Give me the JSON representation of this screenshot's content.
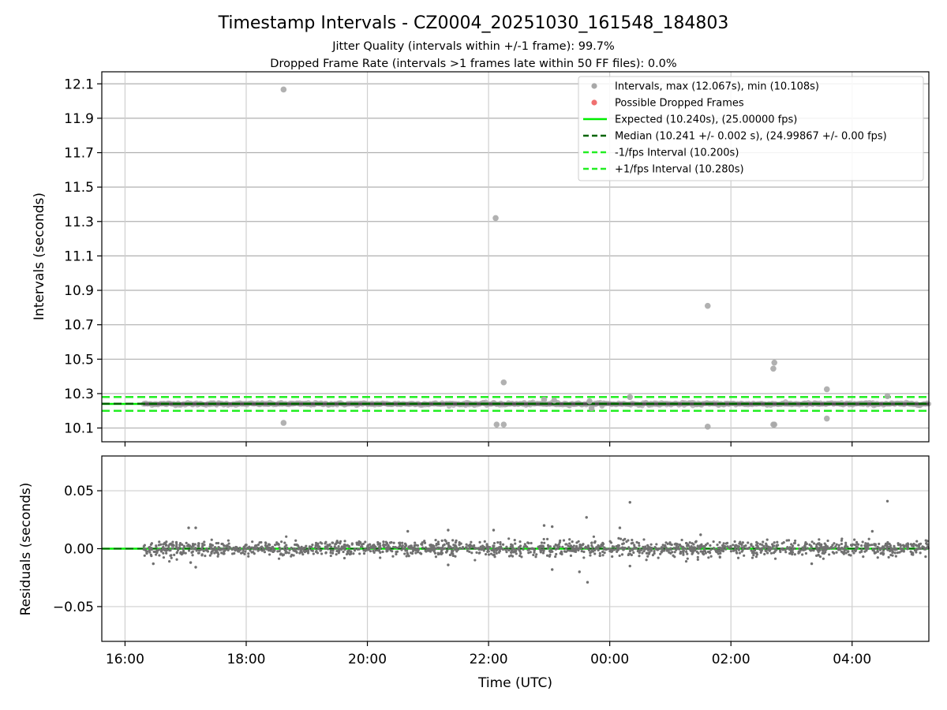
{
  "chart_data": {
    "title": "Timestamp Intervals - CZ0004_20251030_161548_184803",
    "subtitle_lines": [
      "Jitter Quality (intervals within +/-1 frame): 99.7%",
      "Dropped Frame Rate (intervals >1 frames late within 50 FF files): 0.0%"
    ],
    "xlabel": "Time (UTC)",
    "x_axis": {
      "type": "time",
      "start": "2025-10-30T15:37",
      "end": "2025-10-31T05:16",
      "tick_values": [
        "2025-10-30T16:00",
        "2025-10-30T18:00",
        "2025-10-30T20:00",
        "2025-10-30T22:00",
        "2025-10-31T00:00",
        "2025-10-31T02:00",
        "2025-10-31T04:00"
      ],
      "tick_labels": [
        "16:00",
        "18:00",
        "20:00",
        "22:00",
        "00:00",
        "02:00",
        "04:00"
      ],
      "grid": true
    },
    "panels": [
      {
        "type": "scatter",
        "ylabel": "Intervals (seconds)",
        "ylim": [
          10.02,
          12.17
        ],
        "yticks": [
          10.1,
          10.3,
          10.5,
          10.7,
          10.9,
          11.1,
          11.3,
          11.5,
          11.7,
          11.9,
          12.1
        ],
        "ytick_labels": [
          "10.1",
          "10.3",
          "10.5",
          "10.7",
          "10.9",
          "11.1",
          "11.3",
          "11.5",
          "11.7",
          "11.9",
          "12.1"
        ],
        "grid": true,
        "legend_position": "top-right",
        "legend": [
          {
            "label": "Intervals, max (12.067s), min (10.108s)",
            "kind": "marker",
            "color": "#a8a8a8"
          },
          {
            "label": "Possible Dropped Frames",
            "kind": "marker",
            "color": "#f07070"
          },
          {
            "label": "Expected (10.240s), (25.00000 fps)",
            "kind": "solid",
            "color": "#00ee00"
          },
          {
            "label": "Median (10.241 +/- 0.002 s), (24.99867 +/- 0.00 fps)",
            "kind": "dashed",
            "color": "#006400"
          },
          {
            "label": "-1/fps Interval (10.200s)",
            "kind": "dashed",
            "color": "#22ee22"
          },
          {
            "label": "+1/fps Interval (10.280s)",
            "kind": "dashed",
            "color": "#22ee22"
          }
        ],
        "reference_lines": {
          "expected": 10.24,
          "median": 10.241,
          "lower": 10.2,
          "upper": 10.28
        },
        "band": {
          "start": "2025-10-30T16:18",
          "end": "2025-10-31T05:16",
          "center": 10.24
        },
        "outliers": [
          {
            "t": "2025-10-30T18:37",
            "y": 12.067
          },
          {
            "t": "2025-10-30T18:37",
            "y": 10.13
          },
          {
            "t": "2025-10-30T22:07",
            "y": 11.32
          },
          {
            "t": "2025-10-30T22:08",
            "y": 10.12
          },
          {
            "t": "2025-10-30T22:15",
            "y": 10.365
          },
          {
            "t": "2025-10-30T22:15",
            "y": 10.12
          },
          {
            "t": "2025-10-30T22:55",
            "y": 10.265
          },
          {
            "t": "2025-10-30T23:05",
            "y": 10.26
          },
          {
            "t": "2025-10-30T23:40",
            "y": 10.255
          },
          {
            "t": "2025-10-30T23:42",
            "y": 10.215
          },
          {
            "t": "2025-10-31T00:20",
            "y": 10.28
          },
          {
            "t": "2025-10-31T01:37",
            "y": 10.81
          },
          {
            "t": "2025-10-31T01:37",
            "y": 10.108
          },
          {
            "t": "2025-10-31T02:42",
            "y": 10.445
          },
          {
            "t": "2025-10-31T02:43",
            "y": 10.48
          },
          {
            "t": "2025-10-31T02:42",
            "y": 10.12
          },
          {
            "t": "2025-10-31T02:43",
            "y": 10.12
          },
          {
            "t": "2025-10-31T03:35",
            "y": 10.325
          },
          {
            "t": "2025-10-31T03:35",
            "y": 10.155
          },
          {
            "t": "2025-10-31T04:35",
            "y": 10.285
          }
        ],
        "dropped_frames": []
      },
      {
        "type": "scatter",
        "ylabel": "Residuals (seconds)",
        "ylim": [
          -0.08,
          0.08
        ],
        "yticks": [
          -0.05,
          0.0,
          0.05
        ],
        "ytick_labels": [
          "−0.05",
          "0.00",
          "0.05"
        ],
        "grid": true,
        "zero_line": {
          "y": 0.0,
          "color": "#00ee00"
        },
        "median_line": {
          "y": 0.0,
          "color": "#006400"
        },
        "noise": {
          "start": "2025-10-30T16:18",
          "end": "2025-10-31T05:16",
          "typical_spread": 0.006
        },
        "notable_residuals": [
          {
            "t": "2025-10-30T17:03",
            "y": 0.018
          },
          {
            "t": "2025-10-30T17:10",
            "y": 0.018
          },
          {
            "t": "2025-10-30T17:05",
            "y": -0.012
          },
          {
            "t": "2025-10-30T17:10",
            "y": -0.016
          },
          {
            "t": "2025-10-30T16:28",
            "y": -0.013
          },
          {
            "t": "2025-10-30T20:40",
            "y": 0.015
          },
          {
            "t": "2025-10-30T21:20",
            "y": 0.016
          },
          {
            "t": "2025-10-30T21:20",
            "y": -0.014
          },
          {
            "t": "2025-10-30T22:05",
            "y": 0.016
          },
          {
            "t": "2025-10-30T22:55",
            "y": 0.02
          },
          {
            "t": "2025-10-30T23:03",
            "y": 0.019
          },
          {
            "t": "2025-10-30T23:03",
            "y": -0.018
          },
          {
            "t": "2025-10-30T23:30",
            "y": -0.02
          },
          {
            "t": "2025-10-30T23:37",
            "y": 0.027
          },
          {
            "t": "2025-10-30T23:38",
            "y": -0.029
          },
          {
            "t": "2025-10-31T00:20",
            "y": 0.04
          },
          {
            "t": "2025-10-31T00:10",
            "y": 0.018
          },
          {
            "t": "2025-10-31T00:20",
            "y": -0.015
          },
          {
            "t": "2025-10-31T01:30",
            "y": 0.012
          },
          {
            "t": "2025-10-31T03:20",
            "y": -0.013
          },
          {
            "t": "2025-10-31T04:20",
            "y": 0.015
          },
          {
            "t": "2025-10-31T04:35",
            "y": 0.041
          }
        ]
      }
    ]
  }
}
